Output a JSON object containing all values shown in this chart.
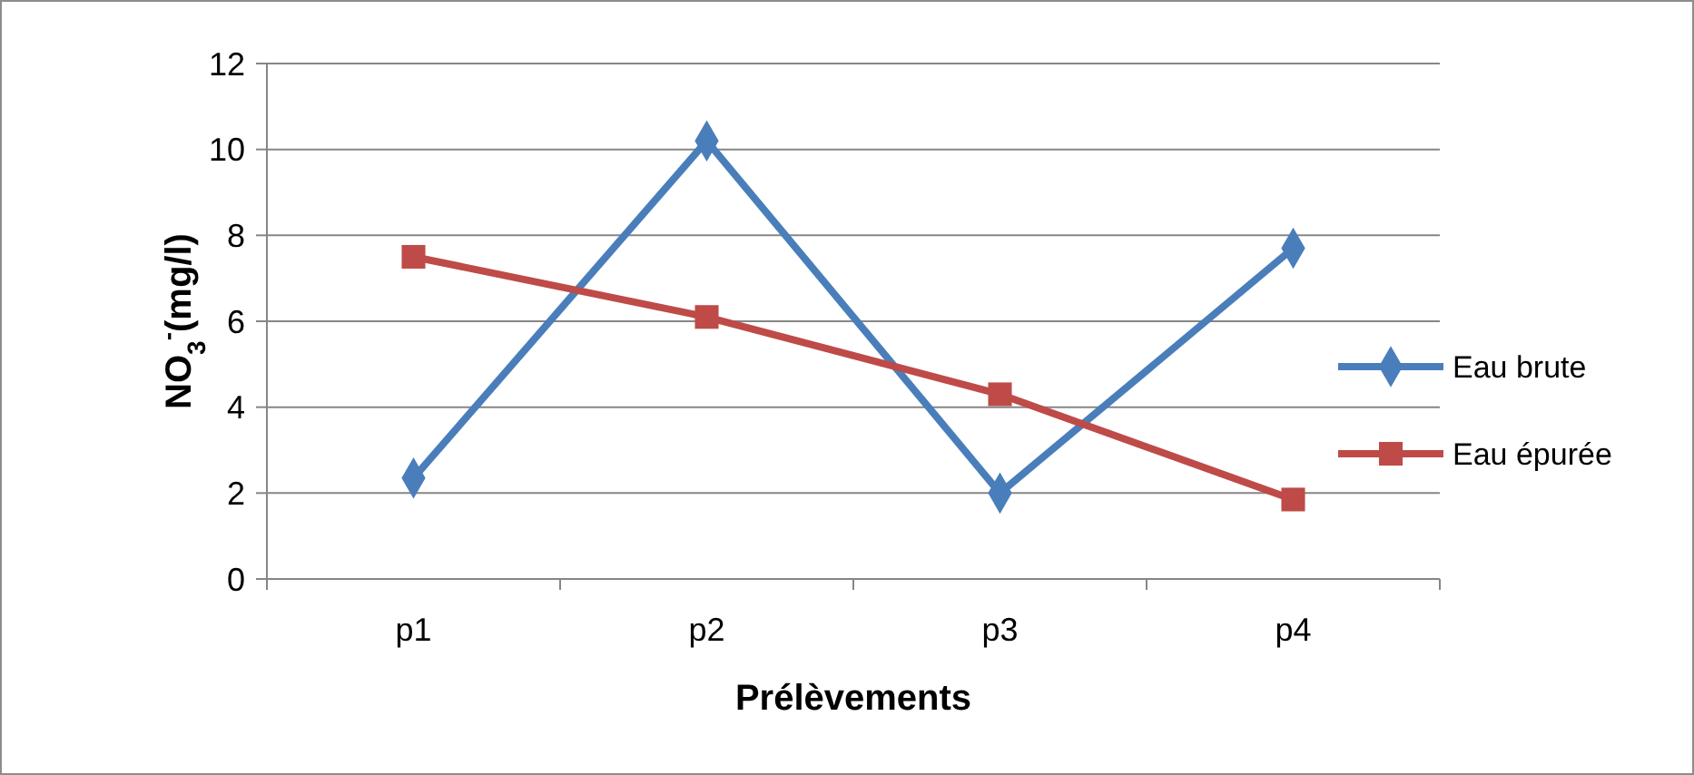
{
  "chart_data": {
    "type": "line",
    "xlabel": "Prélèvements",
    "ylabel": "NO$_{3}$$^{-}$(mg/l)",
    "categories": [
      "p1",
      "p2",
      "p3",
      "p4"
    ],
    "series": [
      {
        "name": "Eau brute",
        "color": "#4a7ebb",
        "values": [
          2.35,
          10.2,
          2.0,
          7.7
        ],
        "marker": "diamond"
      },
      {
        "name": "Eau épurée",
        "color": "#be4b48",
        "values": [
          7.5,
          6.1,
          4.3,
          1.85
        ],
        "marker": "square"
      }
    ],
    "ylim": [
      0,
      12
    ],
    "yticks": [
      0,
      2,
      4,
      6,
      8,
      10,
      12
    ],
    "grid": "y",
    "legend": "right",
    "line_style": "solid"
  }
}
